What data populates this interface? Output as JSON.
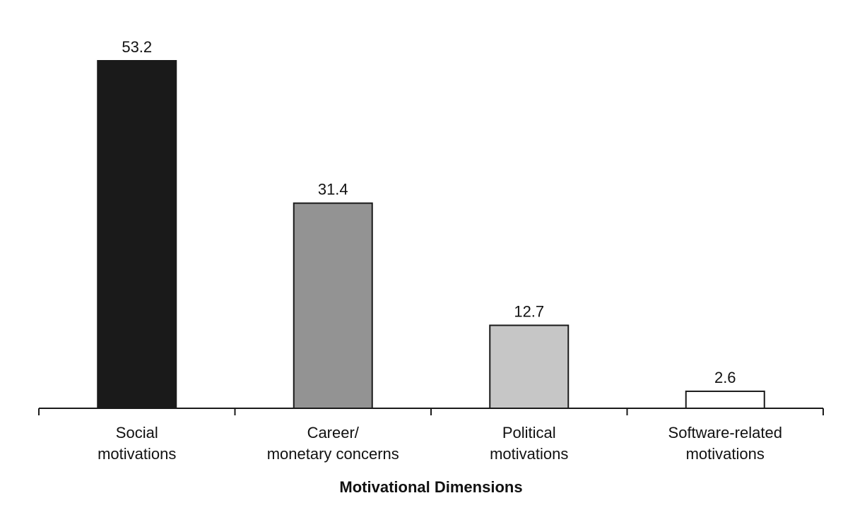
{
  "chart_data": {
    "type": "bar",
    "title": "",
    "xlabel": "Motivational Dimensions",
    "ylabel": "",
    "ylim": [
      0,
      53.2
    ],
    "grid": false,
    "legend": "none",
    "categories": [
      [
        "Social",
        "motivations"
      ],
      [
        "Career/",
        "monetary concerns"
      ],
      [
        "Political",
        "motivations"
      ],
      [
        "Software-related",
        "motivations"
      ]
    ],
    "values": [
      53.2,
      31.4,
      12.7,
      2.6
    ],
    "value_labels": [
      "53.2",
      "31.4",
      "12.7",
      "2.6"
    ],
    "bar_colors": [
      "#1a1a1a",
      "#939393",
      "#c6c6c6",
      "#ffffff"
    ],
    "bar_outline": "#1a1a1a"
  }
}
